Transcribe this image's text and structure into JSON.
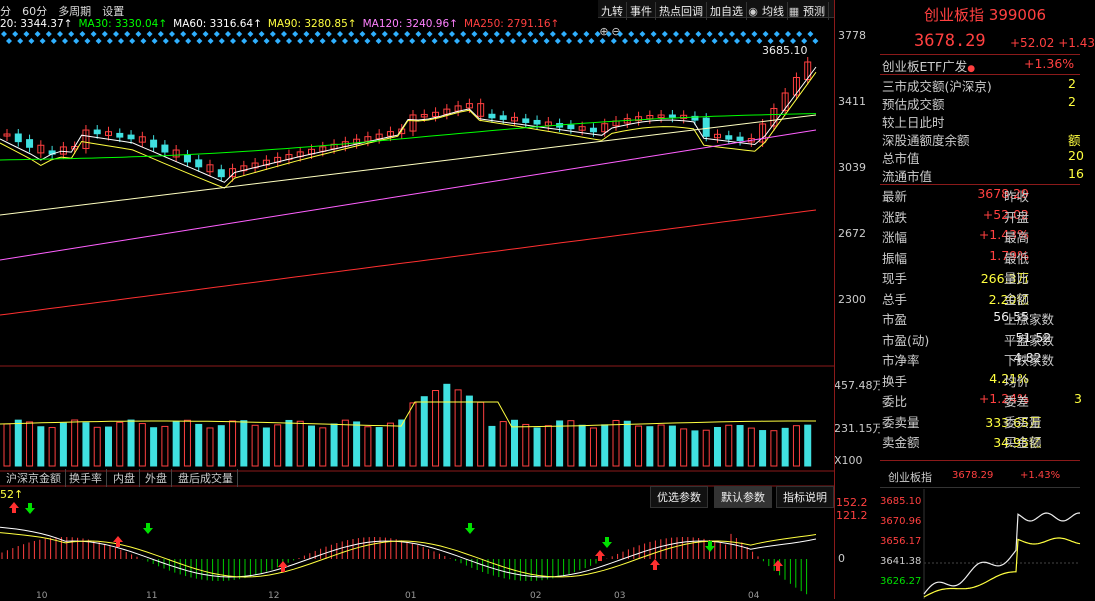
{
  "topbar": {
    "items": [
      "分",
      "60分",
      "多周期",
      "设置"
    ]
  },
  "toolbar": {
    "buttons": [
      "九转",
      "事件",
      "热点回调",
      "加自选",
      "均线",
      "预测"
    ]
  },
  "ma_bar": [
    {
      "label": "20: 3344.37↑",
      "color": "#ffffff"
    },
    {
      "label": "MA30: 3330.04↑",
      "color": "#00ff00"
    },
    {
      "label": "MA60: 3316.64↑",
      "color": "#ffffff"
    },
    {
      "label": "MA90: 3280.85↑",
      "color": "#ffff40"
    },
    {
      "label": "MA120: 3240.96↑",
      "color": "#ff80ff"
    },
    {
      "label": "MA250: 2791.16↑",
      "color": "#ff4040"
    }
  ],
  "main_chart": {
    "price_axis": [
      "3778",
      "3411",
      "3039",
      "2672",
      "2300"
    ],
    "peak_label": "3685.10",
    "volume_axis": [
      "457.48万",
      "231.15万",
      "X100"
    ],
    "indicator_axis": [
      "152.2",
      "121.2",
      "0"
    ],
    "indicator_top_label": "52↑",
    "date_labels": [
      "10",
      "11",
      "12",
      "01",
      "02",
      "03",
      "04"
    ]
  },
  "bottom_tabs": [
    "沪深京金额",
    "换手率",
    "内盘",
    "外盘",
    "盘后成交量"
  ],
  "indicator_buttons": {
    "preferred": "优选参数",
    "default": "默认参数",
    "help": "指标说明"
  },
  "quote": {
    "name": "创业板指",
    "code": "399006",
    "price": "3678.29",
    "change": "+52.02",
    "change_pct": "+1.43",
    "etf_label": "创业板ETF广发",
    "etf_change": "+1.36%",
    "info_rows": [
      {
        "label": "三市成交额(沪深京)",
        "value": "2"
      },
      {
        "label": "预估成交额",
        "value": "2"
      },
      {
        "label": "较上日此时",
        "value": ""
      },
      {
        "label": "深股通额度余额",
        "value": "额"
      },
      {
        "label": "总市值",
        "value": "20"
      },
      {
        "label": "流通市值",
        "value": "16"
      }
    ],
    "stats": [
      {
        "l1": "最新",
        "v1": "3678.29",
        "c1": "red",
        "l2": "昨收"
      },
      {
        "l1": "涨跌",
        "v1": "+52.02",
        "c1": "red",
        "l2": "开盘"
      },
      {
        "l1": "涨幅",
        "v1": "+1.43%",
        "c1": "red",
        "l2": "最高"
      },
      {
        "l1": "振幅",
        "v1": "1.79%",
        "c1": "red",
        "l2": "最低"
      },
      {
        "l1": "现手",
        "v1": "266.3万",
        "c1": "yel",
        "l2": "量比"
      },
      {
        "l1": "总手",
        "v1": "2.20亿",
        "c1": "yel",
        "l2": "金额"
      },
      {
        "l1": "市盈",
        "v1": "56.55",
        "c1": "wht",
        "l2": "上涨家数"
      },
      {
        "l1": "市盈(动)",
        "v1": "51.52",
        "c1": "wht",
        "l2": "平盘家数"
      },
      {
        "l1": "市净率",
        "v1": "4.82",
        "c1": "wht",
        "l2": "下跌家数"
      },
      {
        "l1": "换手",
        "v1": "4.21%",
        "c1": "yel",
        "l2": "均价"
      },
      {
        "l1": "委比",
        "v1": "+1.24%",
        "c1": "red",
        "l2": "委差"
      },
      {
        "l1": "委卖量",
        "v1": "333.65万",
        "c1": "yel",
        "l2": "委买量"
      },
      {
        "l1": "卖金额",
        "v1": "34.95亿",
        "c1": "yel",
        "l2": "买金额"
      }
    ],
    "right_edge_values": [
      "",
      "",
      "",
      "",
      "",
      "",
      "",
      "",
      "",
      "",
      "3",
      "",
      ""
    ]
  },
  "mini_chart": {
    "name": "创业板指",
    "price": "3678.29",
    "pct": "+1.43%",
    "axis": [
      "3685.10",
      "3670.96",
      "3656.17",
      "3641.38",
      "3626.27"
    ]
  }
}
